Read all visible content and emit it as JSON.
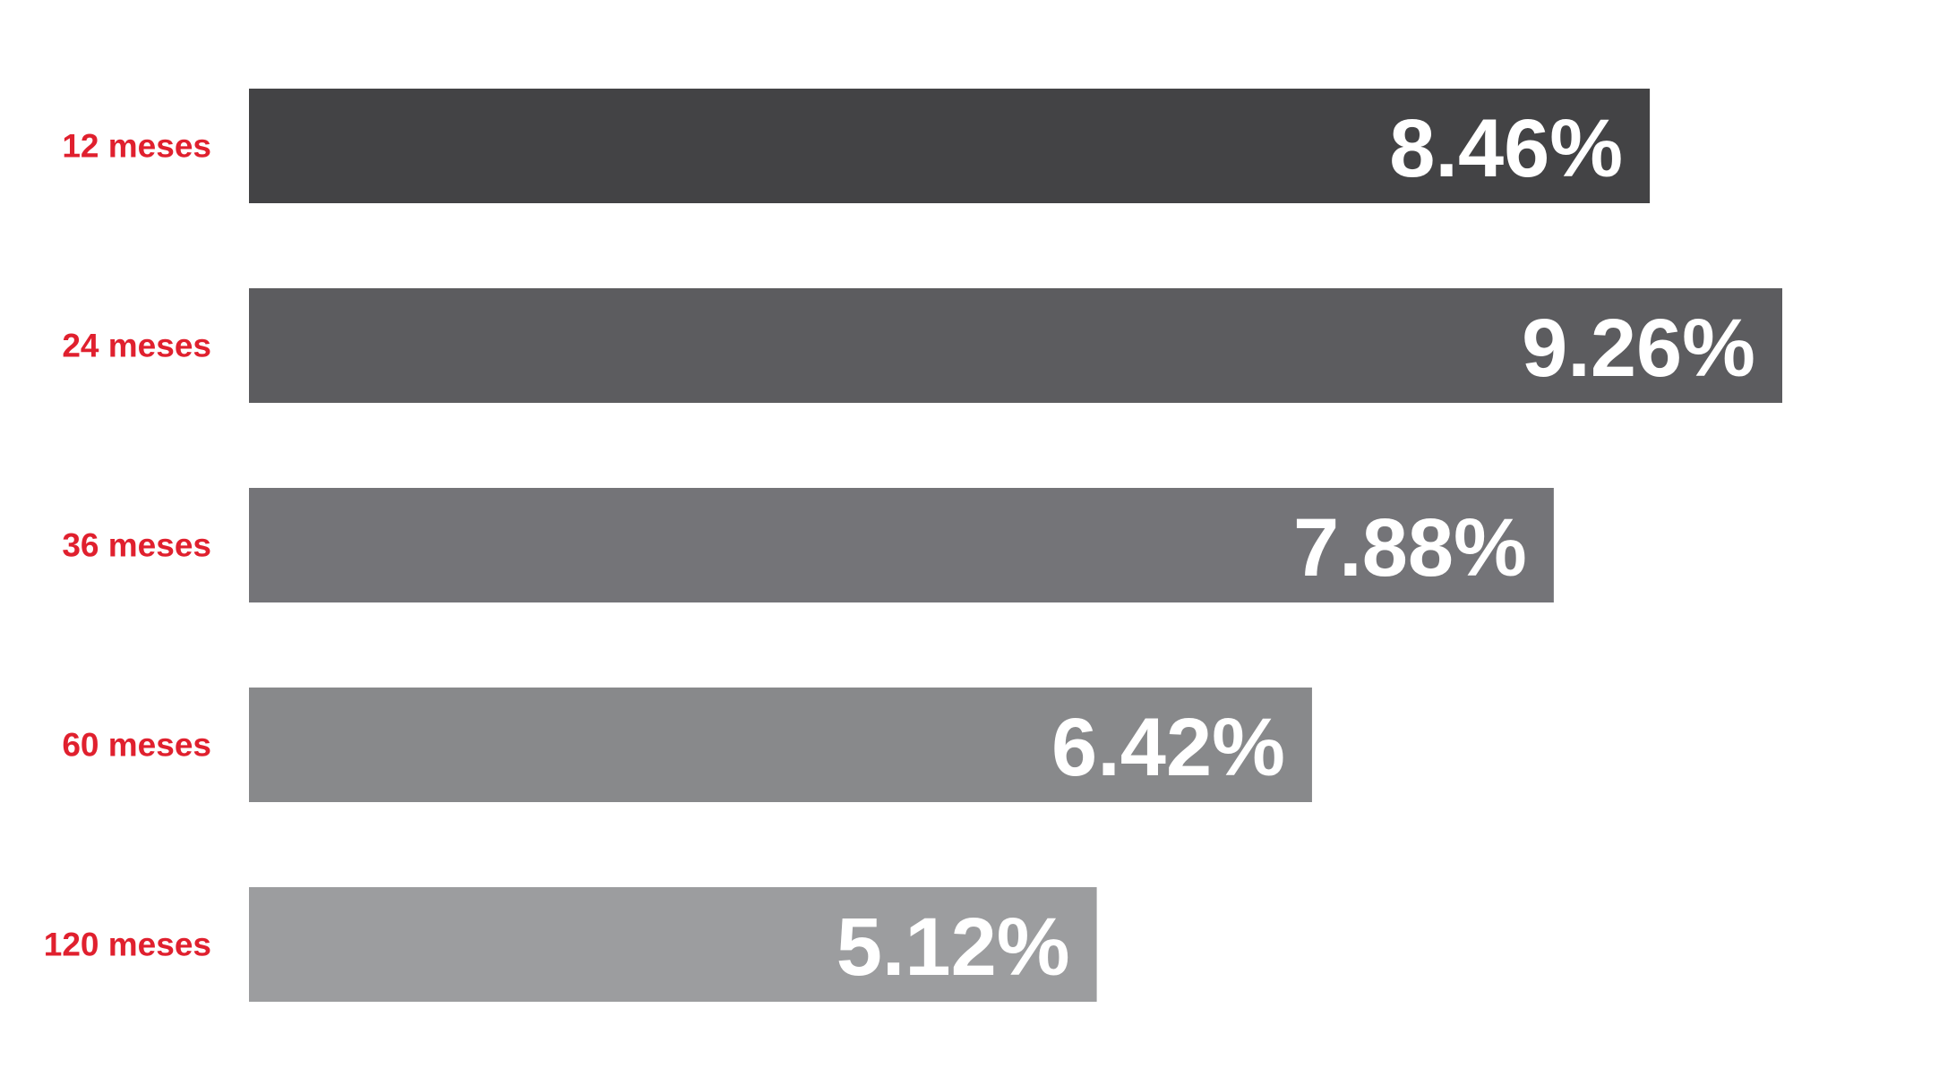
{
  "chart_data": {
    "type": "bar",
    "orientation": "horizontal",
    "categories": [
      "12 meses",
      "24 meses",
      "36 meses",
      "60 meses",
      "120 meses"
    ],
    "values": [
      8.46,
      9.26,
      7.88,
      6.42,
      5.12
    ],
    "value_labels": [
      "8.46%",
      "9.26%",
      "7.88%",
      "6.42%",
      "5.12%"
    ],
    "bar_colors": [
      "#434345",
      "#5c5c5f",
      "#747478",
      "#88898b",
      "#9c9d9f"
    ],
    "label_color": "#e0202e",
    "value_label_color": "#ffffff",
    "title": "",
    "xlabel": "",
    "ylabel": "",
    "xlim": [
      0,
      9.26
    ],
    "grid": false,
    "legend": "none"
  }
}
